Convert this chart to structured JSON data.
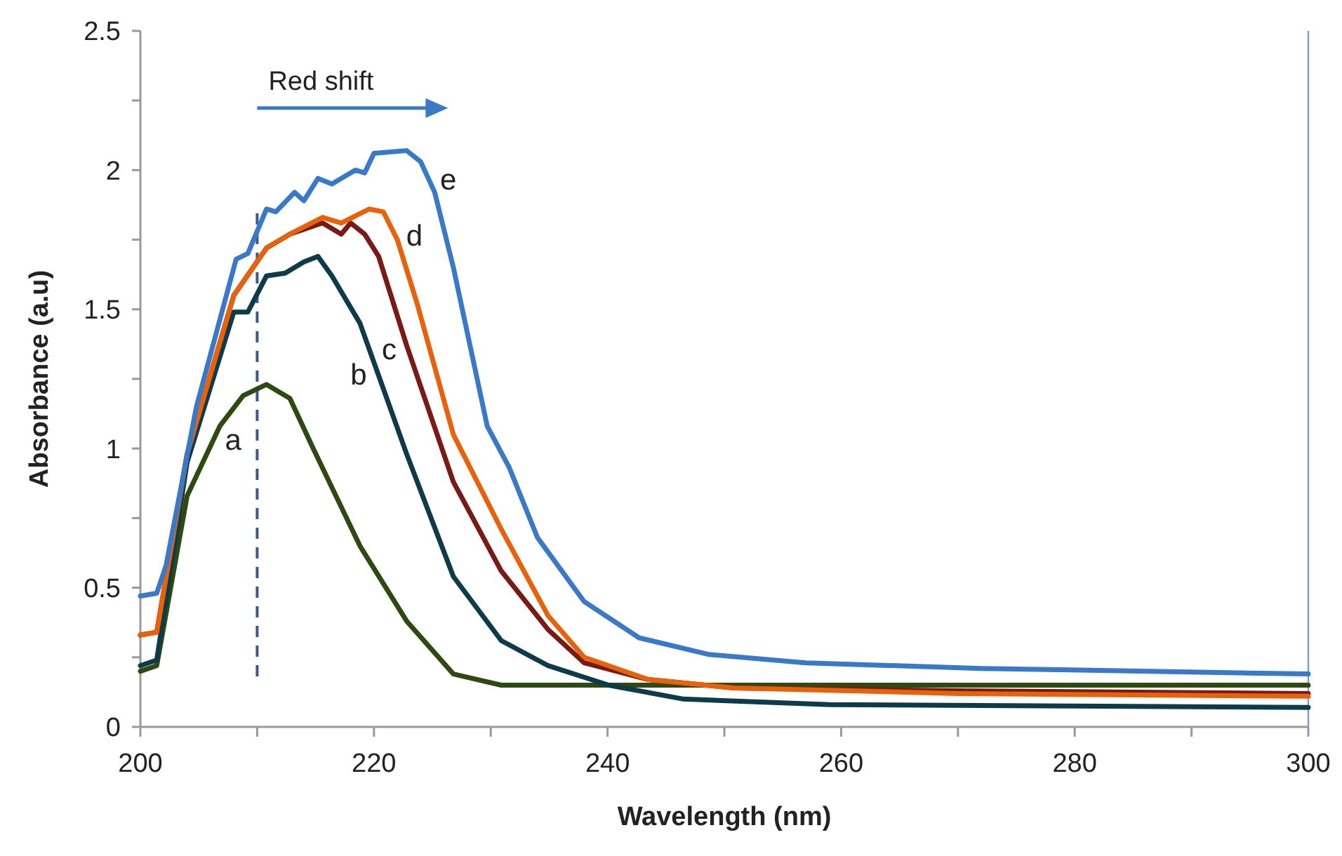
{
  "chart_data": {
    "type": "line",
    "xlabel": "Wavelength (nm)",
    "ylabel": "Absorbance (a.u)",
    "xlim": [
      200,
      300
    ],
    "ylim": [
      0,
      2.5
    ],
    "xticks": [
      200,
      {
        "value": 210,
        "label": null
      },
      220,
      {
        "value": 230,
        "label": null
      },
      240,
      {
        "value": 250,
        "label": null
      },
      260,
      {
        "value": 270,
        "label": null
      },
      280,
      {
        "value": 290,
        "label": null
      },
      300
    ],
    "yticks": [
      0,
      {
        "value": 0.25,
        "label": null
      },
      0.5,
      {
        "value": 0.75,
        "label": null
      },
      1,
      {
        "value": 1.25,
        "label": null
      },
      1.5,
      {
        "value": 1.75,
        "label": null
      },
      2,
      {
        "value": 2.25,
        "label": null
      },
      2.5
    ],
    "grid": false,
    "marker": "none",
    "line_style": "solid",
    "series": [
      {
        "name": "a",
        "color": "#2e4a12",
        "x": [
          200,
          201.4,
          204,
          206.8,
          208.8,
          210.8,
          212.8,
          214.8,
          218.8,
          222.8,
          226.8,
          230.9,
          240,
          260,
          280,
          300
        ],
        "values": [
          0.2,
          0.22,
          0.83,
          1.08,
          1.19,
          1.23,
          1.18,
          1.0,
          0.65,
          0.38,
          0.19,
          0.15,
          0.15,
          0.15,
          0.15,
          0.15
        ]
      },
      {
        "name": "b",
        "color": "#0d3b4a",
        "x": [
          200,
          201.4,
          204,
          208,
          209.2,
          210.8,
          212.4,
          214,
          215.2,
          216.4,
          218.8,
          222.8,
          226.8,
          230.9,
          234.9,
          240.1,
          246.5,
          259,
          280,
          300
        ],
        "values": [
          0.22,
          0.24,
          0.95,
          1.49,
          1.49,
          1.62,
          1.63,
          1.67,
          1.69,
          1.62,
          1.45,
          0.98,
          0.54,
          0.31,
          0.22,
          0.15,
          0.1,
          0.08,
          0.075,
          0.07
        ]
      },
      {
        "name": "c",
        "color": "#7a1a14",
        "x": [
          200,
          201.4,
          204,
          208,
          210.8,
          212.8,
          215.6,
          217.2,
          218,
          219.2,
          220.4,
          222.8,
          226.8,
          230.9,
          234.9,
          238,
          243.5,
          250.8,
          270,
          300
        ],
        "values": [
          0.33,
          0.34,
          0.98,
          1.55,
          1.72,
          1.77,
          1.81,
          1.77,
          1.81,
          1.77,
          1.69,
          1.37,
          0.88,
          0.56,
          0.35,
          0.23,
          0.17,
          0.14,
          0.13,
          0.12
        ]
      },
      {
        "name": "d",
        "color": "#e8620c",
        "x": [
          200,
          201.4,
          204,
          208,
          210.8,
          212.8,
          215.6,
          217.2,
          219.6,
          220.8,
          222,
          223.7,
          226.8,
          230.9,
          234.9,
          238,
          243.5,
          250.8,
          270,
          300
        ],
        "values": [
          0.33,
          0.34,
          0.98,
          1.55,
          1.72,
          1.77,
          1.83,
          1.81,
          1.86,
          1.85,
          1.75,
          1.52,
          1.05,
          0.71,
          0.4,
          0.25,
          0.17,
          0.14,
          0.12,
          0.11
        ]
      },
      {
        "name": "e",
        "color": "#3a78c8",
        "x": [
          200,
          201.4,
          202.2,
          204.8,
          208.2,
          209.2,
          210.8,
          211.6,
          213.2,
          214,
          215.2,
          216.4,
          218.4,
          219.2,
          220,
          222.8,
          224,
          225.2,
          226.8,
          229.7,
          231.6,
          234,
          238,
          242.7,
          248.7,
          257,
          272,
          300
        ],
        "values": [
          0.47,
          0.48,
          0.58,
          1.15,
          1.68,
          1.7,
          1.86,
          1.85,
          1.92,
          1.89,
          1.97,
          1.95,
          2.0,
          1.99,
          2.06,
          2.07,
          2.03,
          1.92,
          1.65,
          1.08,
          0.93,
          0.68,
          0.45,
          0.32,
          0.26,
          0.23,
          0.21,
          0.19
        ]
      }
    ],
    "ref_lines": [
      {
        "axis": "x",
        "value": 210,
        "color": "#3a5a8a",
        "line_style": "dashed"
      }
    ],
    "annotations": [
      "Red shift"
    ]
  }
}
